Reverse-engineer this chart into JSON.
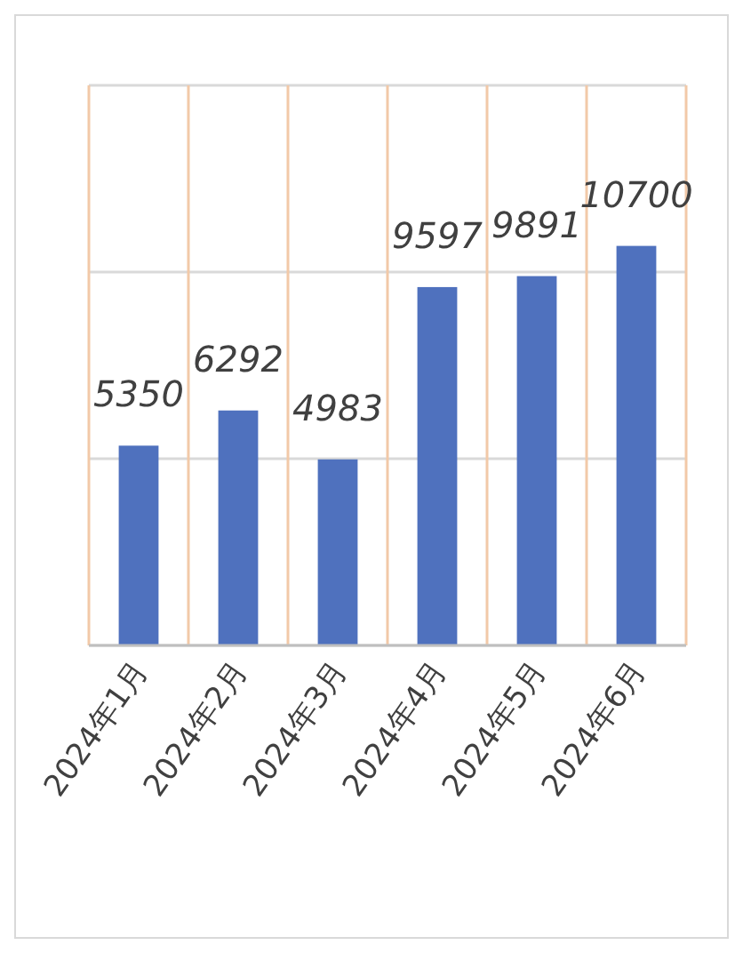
{
  "chart_data": {
    "type": "bar",
    "categories": [
      "2024年1月",
      "2024年2月",
      "2024年3月",
      "2024年4月",
      "2024年5月",
      "2024年6月"
    ],
    "values": [
      5350,
      6292,
      4983,
      9597,
      9891,
      10700
    ],
    "color": "#4f71be",
    "ylim": [
      0,
      15000
    ],
    "yticks": [
      {
        "value": 0,
        "label": null
      },
      {
        "value": 5000,
        "label": null
      },
      {
        "value": 10000,
        "label": null
      },
      {
        "value": 15000,
        "label": null
      }
    ],
    "grid": true,
    "tick_labels": "x",
    "data_labels": true
  }
}
